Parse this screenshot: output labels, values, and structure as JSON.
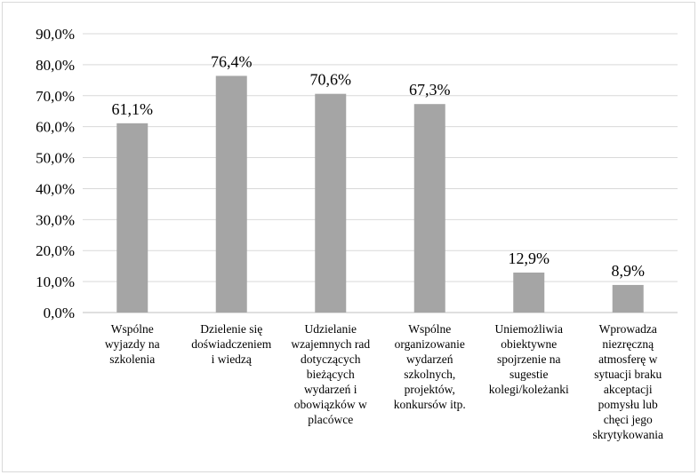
{
  "chart_data": {
    "type": "bar",
    "title": "",
    "xlabel": "",
    "ylabel": "",
    "ylim": [
      0,
      90
    ],
    "yticks": [
      "0,0%",
      "10,0%",
      "20,0%",
      "30,0%",
      "40,0%",
      "50,0%",
      "60,0%",
      "70,0%",
      "80,0%",
      "90,0%"
    ],
    "grid": true,
    "legend": "none",
    "bar_color": "#a5a5a5",
    "grid_color": "#d9d9d9",
    "categories": [
      "Wspólne wyjazdy na szkolenia",
      "Dzielenie się doświadczeniem i wiedzą",
      "Udzielanie wzajemnych rad dotyczących bieżących wydarzeń i obowiązków w placówce",
      "Wspólne organizowanie wydarzeń szkolnych, projektów, konkursów itp.",
      "Uniemożliwia obiektywne spojrzenie na sugestie kolegi/koleżanki",
      "Wprowadza niezręczną atmosferę w sytuacji braku akceptacji pomysłu lub chęci jego skrytykowania"
    ],
    "category_lines": [
      [
        "Wspólne",
        "wyjazdy na",
        "szkolenia"
      ],
      [
        "Dzielenie się",
        "doświadczeniem",
        "i wiedzą"
      ],
      [
        "Udzielanie",
        "wzajemnych rad",
        "dotyczących",
        "bieżących",
        "wydarzeń i",
        "obowiązków w",
        "placówce"
      ],
      [
        "Wspólne",
        "organizowanie",
        "wydarzeń",
        "szkolnych,",
        "projektów,",
        "konkursów itp."
      ],
      [
        "Uniemożliwia",
        "obiektywne",
        "spojrzenie na",
        "sugestie",
        "kolegi/koleżanki"
      ],
      [
        "Wprowadza",
        "niezręczną",
        "atmosferę w",
        "sytuacji braku",
        "akceptacji",
        "pomysłu lub",
        "chęci jego",
        "skrytykowania"
      ]
    ],
    "values": [
      61.1,
      76.4,
      70.6,
      67.3,
      12.9,
      8.9
    ],
    "data_labels": [
      "61,1%",
      "76,4%",
      "70,6%",
      "67,3%",
      "12,9%",
      "8,9%"
    ]
  }
}
